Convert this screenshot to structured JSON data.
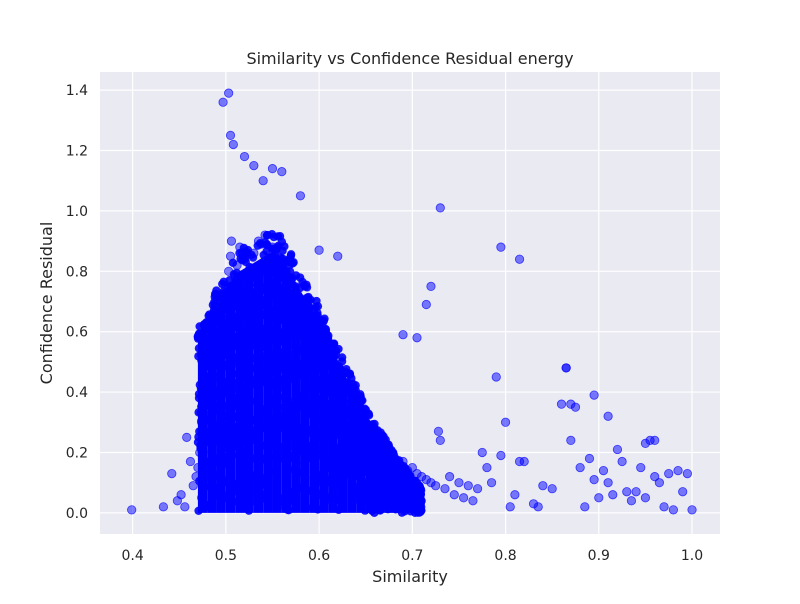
{
  "chart_data": {
    "type": "scatter",
    "title": "Similarity vs Confidence Residual energy",
    "xlabel": "Similarity",
    "ylabel": "Confidence Residual",
    "xlim": [
      0.365,
      1.03
    ],
    "ylim": [
      -0.07,
      1.46
    ],
    "xticks": [
      0.4,
      0.5,
      0.6,
      0.7,
      0.8,
      0.9,
      1.0
    ],
    "xtick_labels": [
      "0.4",
      "0.5",
      "0.6",
      "0.7",
      "0.8",
      "0.9",
      "1.0"
    ],
    "yticks": [
      0.0,
      0.2,
      0.4,
      0.6,
      0.8,
      1.0,
      1.2,
      1.4
    ],
    "ytick_labels": [
      "0.0",
      "0.2",
      "0.4",
      "0.6",
      "0.8",
      "1.0",
      "1.2",
      "1.4"
    ],
    "grid": true,
    "legend": false,
    "colors": {
      "point": "#0000ff",
      "plot_bg": "#eaeaf2",
      "grid": "#ffffff"
    },
    "point_alpha": 0.5,
    "series": [
      {
        "x": [
          0.399,
          0.433,
          0.442,
          0.448,
          0.452,
          0.456,
          0.458,
          0.462,
          0.465,
          0.468,
          0.47,
          0.472,
          0.474,
          0.476,
          0.478,
          0.48,
          0.482,
          0.484,
          0.486,
          0.488,
          0.49,
          0.492,
          0.494,
          0.496,
          0.497,
          0.5,
          0.502,
          0.503,
          0.505,
          0.506,
          0.508,
          0.51,
          0.512,
          0.514,
          0.515,
          0.518,
          0.52,
          0.522,
          0.525,
          0.528,
          0.53,
          0.532,
          0.535,
          0.538,
          0.54,
          0.542,
          0.545,
          0.548,
          0.55,
          0.553,
          0.556,
          0.558,
          0.56,
          0.562,
          0.565,
          0.568,
          0.57,
          0.572,
          0.575,
          0.578,
          0.58,
          0.582,
          0.585,
          0.588,
          0.59,
          0.592,
          0.595,
          0.598,
          0.6,
          0.602,
          0.605,
          0.608,
          0.61,
          0.612,
          0.615,
          0.618,
          0.62,
          0.622,
          0.625,
          0.628,
          0.63,
          0.632,
          0.635,
          0.638,
          0.64,
          0.642,
          0.645,
          0.648,
          0.65,
          0.655,
          0.66,
          0.665,
          0.67,
          0.675,
          0.68,
          0.685,
          0.69,
          0.695,
          0.7,
          0.705,
          0.71,
          0.715,
          0.72,
          0.725,
          0.728,
          0.73,
          0.735,
          0.74,
          0.745,
          0.75,
          0.755,
          0.76,
          0.765,
          0.77,
          0.775,
          0.78,
          0.785,
          0.79,
          0.795,
          0.8,
          0.805,
          0.81,
          0.815,
          0.82,
          0.83,
          0.835,
          0.84,
          0.85,
          0.86,
          0.865,
          0.87,
          0.875,
          0.88,
          0.885,
          0.89,
          0.895,
          0.9,
          0.905,
          0.91,
          0.915,
          0.92,
          0.925,
          0.93,
          0.935,
          0.94,
          0.945,
          0.95,
          0.955,
          0.96,
          0.965,
          0.97,
          0.975,
          0.98,
          0.985,
          0.99,
          0.995,
          1.0,
          0.497,
          0.503,
          0.505,
          0.508,
          0.52,
          0.53,
          0.54,
          0.55,
          0.56,
          0.58,
          0.6,
          0.62,
          0.73,
          0.795,
          0.815,
          0.72,
          0.715,
          0.705,
          0.69,
          0.87,
          0.895,
          0.91,
          0.865,
          0.95,
          0.96
        ],
        "y": [
          0.01,
          0.02,
          0.13,
          0.04,
          0.06,
          0.02,
          0.25,
          0.17,
          0.09,
          0.12,
          0.15,
          0.2,
          0.05,
          0.33,
          0.41,
          0.28,
          0.36,
          0.48,
          0.44,
          0.52,
          0.6,
          0.56,
          0.64,
          0.7,
          0.72,
          0.75,
          0.68,
          0.8,
          0.85,
          0.9,
          0.62,
          0.78,
          0.82,
          0.74,
          0.88,
          0.66,
          0.84,
          0.7,
          0.79,
          0.81,
          0.86,
          0.73,
          0.9,
          0.77,
          0.69,
          0.92,
          0.83,
          0.75,
          0.88,
          0.71,
          0.8,
          0.66,
          0.78,
          0.72,
          0.64,
          0.7,
          0.61,
          0.68,
          0.58,
          0.62,
          0.55,
          0.6,
          0.52,
          0.57,
          0.5,
          0.54,
          0.47,
          0.51,
          0.48,
          0.45,
          0.42,
          0.46,
          0.4,
          0.43,
          0.38,
          0.41,
          0.36,
          0.39,
          0.33,
          0.35,
          0.31,
          0.34,
          0.3,
          0.32,
          0.28,
          0.29,
          0.26,
          0.27,
          0.25,
          0.22,
          0.24,
          0.2,
          0.21,
          0.18,
          0.19,
          0.16,
          0.17,
          0.14,
          0.15,
          0.13,
          0.12,
          0.11,
          0.1,
          0.09,
          0.27,
          0.24,
          0.08,
          0.12,
          0.06,
          0.1,
          0.05,
          0.09,
          0.04,
          0.08,
          0.2,
          0.15,
          0.1,
          0.45,
          0.19,
          0.3,
          0.02,
          0.06,
          0.17,
          0.17,
          0.03,
          0.02,
          0.09,
          0.08,
          0.36,
          0.48,
          0.24,
          0.35,
          0.15,
          0.02,
          0.18,
          0.11,
          0.05,
          0.14,
          0.1,
          0.06,
          0.21,
          0.17,
          0.07,
          0.04,
          0.07,
          0.15,
          0.05,
          0.24,
          0.12,
          0.1,
          0.02,
          0.13,
          0.01,
          0.14,
          0.07,
          0.13,
          0.01,
          1.36,
          1.39,
          1.25,
          1.22,
          1.18,
          1.15,
          1.1,
          1.14,
          1.13,
          1.05,
          0.87,
          0.85,
          1.01,
          0.88,
          0.84,
          0.75,
          0.69,
          0.58,
          0.59,
          0.36,
          0.39,
          0.32,
          0.48,
          0.23,
          0.24
        ]
      }
    ],
    "dense_cloud": {
      "bands": [
        {
          "x": 0.47,
          "ymax": 0.62
        },
        {
          "x": 0.48,
          "ymax": 0.68
        },
        {
          "x": 0.49,
          "ymax": 0.74
        },
        {
          "x": 0.5,
          "ymax": 0.8
        },
        {
          "x": 0.51,
          "ymax": 0.86
        },
        {
          "x": 0.52,
          "ymax": 0.88
        },
        {
          "x": 0.53,
          "ymax": 0.9
        },
        {
          "x": 0.54,
          "ymax": 0.92
        },
        {
          "x": 0.55,
          "ymax": 0.94
        },
        {
          "x": 0.56,
          "ymax": 0.92
        },
        {
          "x": 0.57,
          "ymax": 0.86
        },
        {
          "x": 0.58,
          "ymax": 0.8
        },
        {
          "x": 0.59,
          "ymax": 0.74
        },
        {
          "x": 0.6,
          "ymax": 0.7
        },
        {
          "x": 0.61,
          "ymax": 0.62
        },
        {
          "x": 0.62,
          "ymax": 0.55
        },
        {
          "x": 0.63,
          "ymax": 0.48
        },
        {
          "x": 0.64,
          "ymax": 0.42
        },
        {
          "x": 0.65,
          "ymax": 0.36
        },
        {
          "x": 0.66,
          "ymax": 0.3
        },
        {
          "x": 0.67,
          "ymax": 0.25
        },
        {
          "x": 0.68,
          "ymax": 0.2
        },
        {
          "x": 0.69,
          "ymax": 0.16
        },
        {
          "x": 0.7,
          "ymax": 0.12
        },
        {
          "x": 0.71,
          "ymax": 0.08
        }
      ]
    }
  }
}
